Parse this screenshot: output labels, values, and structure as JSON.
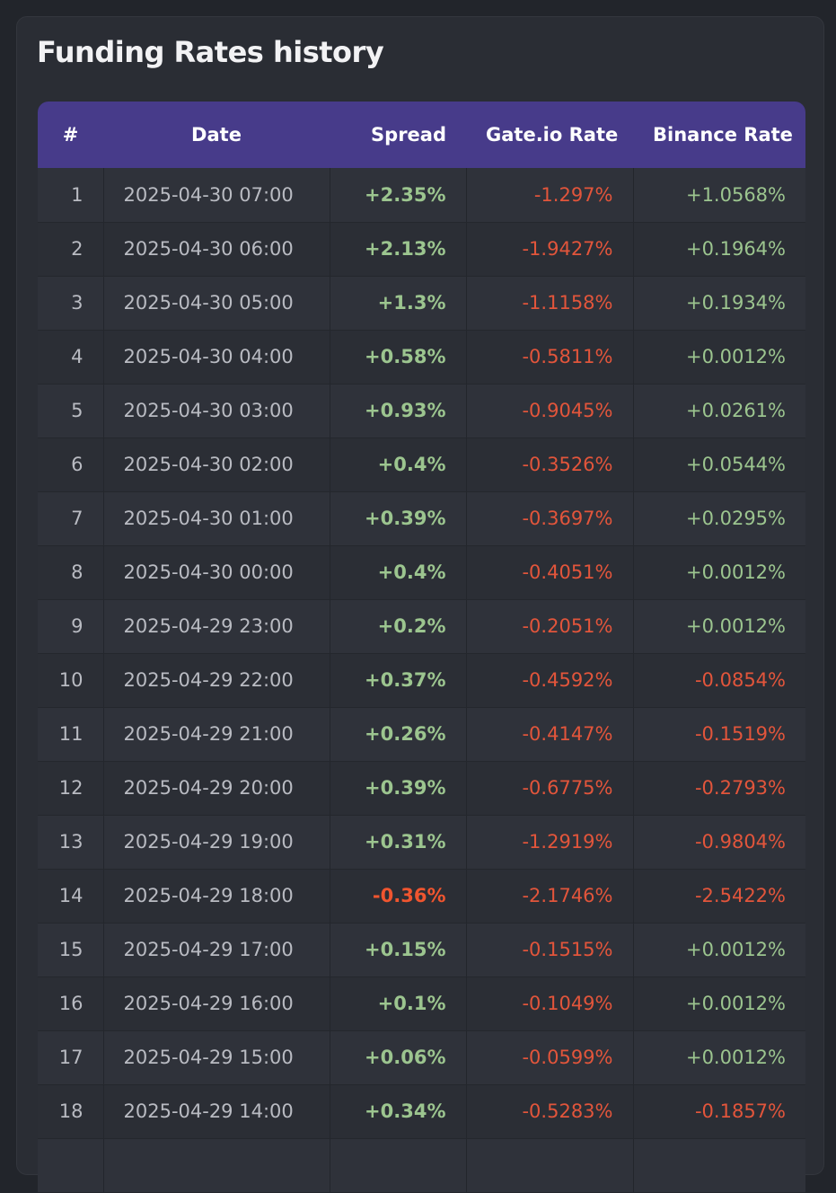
{
  "page": {
    "title": "Funding Rates history"
  },
  "colors": {
    "positive": "#9cc58f",
    "negative": "#e2553b",
    "header_bg": "#473b8a",
    "page_bg": "#22252b"
  },
  "table": {
    "headers": {
      "index": "#",
      "date": "Date",
      "spread": "Spread",
      "gate": "Gate.io Rate",
      "binance": "Binance Rate"
    },
    "rows": [
      {
        "index": "1",
        "date": "2025-04-30 07:00",
        "spread": "+2.35%",
        "gate": "-1.297%",
        "binance": "+1.0568%"
      },
      {
        "index": "2",
        "date": "2025-04-30 06:00",
        "spread": "+2.13%",
        "gate": "-1.9427%",
        "binance": "+0.1964%"
      },
      {
        "index": "3",
        "date": "2025-04-30 05:00",
        "spread": "+1.3%",
        "gate": "-1.1158%",
        "binance": "+0.1934%"
      },
      {
        "index": "4",
        "date": "2025-04-30 04:00",
        "spread": "+0.58%",
        "gate": "-0.5811%",
        "binance": "+0.0012%"
      },
      {
        "index": "5",
        "date": "2025-04-30 03:00",
        "spread": "+0.93%",
        "gate": "-0.9045%",
        "binance": "+0.0261%"
      },
      {
        "index": "6",
        "date": "2025-04-30 02:00",
        "spread": "+0.4%",
        "gate": "-0.3526%",
        "binance": "+0.0544%"
      },
      {
        "index": "7",
        "date": "2025-04-30 01:00",
        "spread": "+0.39%",
        "gate": "-0.3697%",
        "binance": "+0.0295%"
      },
      {
        "index": "8",
        "date": "2025-04-30 00:00",
        "spread": "+0.4%",
        "gate": "-0.4051%",
        "binance": "+0.0012%"
      },
      {
        "index": "9",
        "date": "2025-04-29 23:00",
        "spread": "+0.2%",
        "gate": "-0.2051%",
        "binance": "+0.0012%"
      },
      {
        "index": "10",
        "date": "2025-04-29 22:00",
        "spread": "+0.37%",
        "gate": "-0.4592%",
        "binance": "-0.0854%"
      },
      {
        "index": "11",
        "date": "2025-04-29 21:00",
        "spread": "+0.26%",
        "gate": "-0.4147%",
        "binance": "-0.1519%"
      },
      {
        "index": "12",
        "date": "2025-04-29 20:00",
        "spread": "+0.39%",
        "gate": "-0.6775%",
        "binance": "-0.2793%"
      },
      {
        "index": "13",
        "date": "2025-04-29 19:00",
        "spread": "+0.31%",
        "gate": "-1.2919%",
        "binance": "-0.9804%"
      },
      {
        "index": "14",
        "date": "2025-04-29 18:00",
        "spread": "-0.36%",
        "gate": "-2.1746%",
        "binance": "-2.5422%"
      },
      {
        "index": "15",
        "date": "2025-04-29 17:00",
        "spread": "+0.15%",
        "gate": "-0.1515%",
        "binance": "+0.0012%"
      },
      {
        "index": "16",
        "date": "2025-04-29 16:00",
        "spread": "+0.1%",
        "gate": "-0.1049%",
        "binance": "+0.0012%"
      },
      {
        "index": "17",
        "date": "2025-04-29 15:00",
        "spread": "+0.06%",
        "gate": "-0.0599%",
        "binance": "+0.0012%"
      },
      {
        "index": "18",
        "date": "2025-04-29 14:00",
        "spread": "+0.34%",
        "gate": "-0.5283%",
        "binance": "-0.1857%"
      },
      {
        "index": "",
        "date": "",
        "spread": "",
        "gate": "",
        "binance": ""
      }
    ]
  }
}
